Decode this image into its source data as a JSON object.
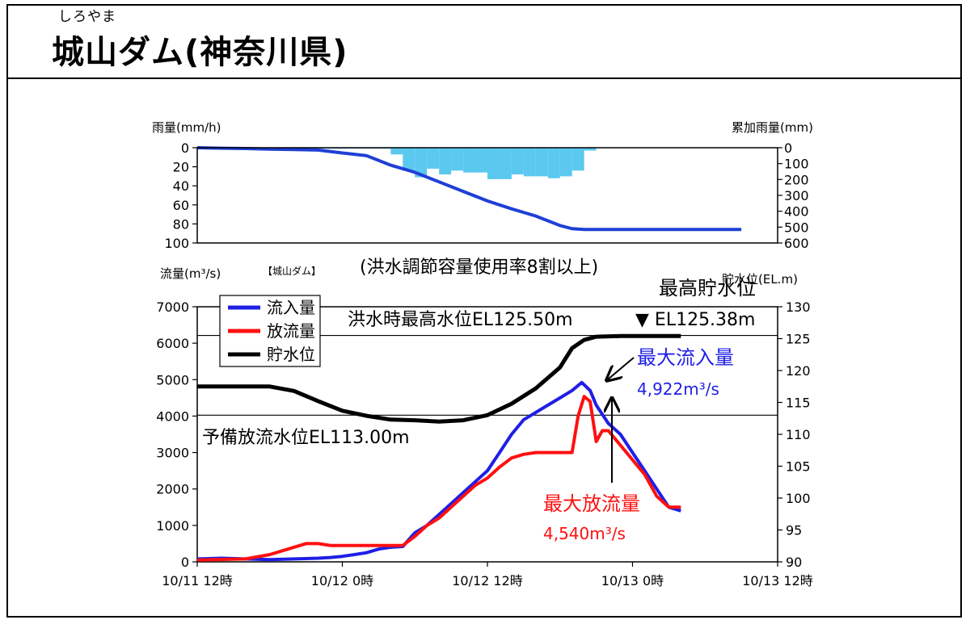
{
  "header": {
    "ruby": "しろやま",
    "title": "城山ダム(神奈川県)"
  },
  "colors": {
    "inflow": "#1f1fe6",
    "outflow": "#ff1010",
    "storage": "#000000",
    "rain_bar": "#5bc8f0",
    "cum_rain": "#1f3fd6"
  },
  "chart_data": [
    {
      "type": "bar",
      "panel": "rainfall",
      "ylabel_left": "雨量(mm/h)",
      "ylabel_right": "累加雨量(mm)",
      "left_ticks": [
        "0",
        "20",
        "40",
        "60",
        "80",
        "100"
      ],
      "right_ticks": [
        "0",
        "100",
        "200",
        "300",
        "400",
        "500",
        "600"
      ],
      "ylim_left": [
        100,
        0
      ],
      "ylim_right": [
        600,
        0
      ],
      "xlim_hours": [
        0,
        48
      ],
      "hourly_rain": [
        [
          0,
          0
        ],
        [
          1,
          0.5
        ],
        [
          2,
          0.5
        ],
        [
          3,
          0.5
        ],
        [
          4,
          0.5
        ],
        [
          5,
          0.5
        ],
        [
          6,
          0.5
        ],
        [
          7,
          1
        ],
        [
          8,
          1
        ],
        [
          9,
          1
        ],
        [
          10,
          1
        ],
        [
          11,
          1
        ],
        [
          12,
          1
        ],
        [
          13,
          1
        ],
        [
          14,
          1
        ],
        [
          15,
          1
        ],
        [
          16,
          7
        ],
        [
          17,
          24
        ],
        [
          18,
          31
        ],
        [
          19,
          22
        ],
        [
          20,
          28
        ],
        [
          21,
          24
        ],
        [
          22,
          26
        ],
        [
          23,
          26
        ],
        [
          24,
          33
        ],
        [
          25,
          33
        ],
        [
          26,
          28
        ],
        [
          27,
          30
        ],
        [
          28,
          30
        ],
        [
          29,
          32
        ],
        [
          30,
          30
        ],
        [
          31,
          24
        ],
        [
          32,
          3
        ],
        [
          33,
          0
        ]
      ],
      "cumulative_rain": [
        [
          0,
          0
        ],
        [
          2,
          3
        ],
        [
          4,
          5
        ],
        [
          6,
          9
        ],
        [
          8,
          11
        ],
        [
          10,
          15
        ],
        [
          12,
          33
        ],
        [
          14,
          50
        ],
        [
          16,
          110
        ],
        [
          18,
          155
        ],
        [
          20,
          215
        ],
        [
          22,
          275
        ],
        [
          24,
          335
        ],
        [
          26,
          385
        ],
        [
          28,
          430
        ],
        [
          30,
          490
        ],
        [
          31,
          510
        ],
        [
          32,
          515
        ],
        [
          34,
          515
        ],
        [
          40,
          515
        ],
        [
          45,
          515
        ]
      ]
    },
    {
      "type": "line",
      "panel": "flow",
      "subtitle": "(洪水調節容量使用率8割以上)",
      "small_label": "【城山ダム】",
      "ylabel_left": "流量(m³/s)",
      "ylabel_right": "貯水位(EL.m)",
      "left_ticks": [
        "0",
        "1000",
        "2000",
        "3000",
        "4000",
        "5000",
        "6000",
        "7000"
      ],
      "right_ticks": [
        "90",
        "95",
        "100",
        "105",
        "110",
        "115",
        "120",
        "125",
        "130"
      ],
      "x_ticks": [
        "10/11 12時",
        "10/12 0時",
        "10/12 12時",
        "10/13 0時",
        "10/13 12時"
      ],
      "ylim_left": [
        0,
        7000
      ],
      "ylim_right": [
        90,
        130
      ],
      "xlim_hours": [
        0,
        48
      ],
      "legend": [
        "流入量",
        "放流量",
        "貯水位"
      ],
      "series": [
        {
          "name": "流入量",
          "points": [
            [
              0,
              80
            ],
            [
              2,
              100
            ],
            [
              4,
              80
            ],
            [
              6,
              60
            ],
            [
              8,
              80
            ],
            [
              10,
              100
            ],
            [
              11,
              120
            ],
            [
              12,
              150
            ],
            [
              13,
              200
            ],
            [
              14,
              250
            ],
            [
              15,
              350
            ],
            [
              16,
              400
            ],
            [
              17,
              420
            ],
            [
              18,
              800
            ],
            [
              19,
              1000
            ],
            [
              20,
              1300
            ],
            [
              21,
              1600
            ],
            [
              22,
              1900
            ],
            [
              23,
              2200
            ],
            [
              24,
              2500
            ],
            [
              25,
              3000
            ],
            [
              26,
              3500
            ],
            [
              27,
              3900
            ],
            [
              28,
              4100
            ],
            [
              29,
              4300
            ],
            [
              30,
              4500
            ],
            [
              31,
              4700
            ],
            [
              31.8,
              4922
            ],
            [
              32.5,
              4700
            ],
            [
              33,
              4300
            ],
            [
              34,
              3800
            ],
            [
              35,
              3500
            ],
            [
              36,
              3000
            ],
            [
              37,
              2500
            ],
            [
              38,
              2000
            ],
            [
              39,
              1500
            ],
            [
              40,
              1400
            ]
          ]
        },
        {
          "name": "放流量",
          "points": [
            [
              0,
              50
            ],
            [
              4,
              80
            ],
            [
              6,
              200
            ],
            [
              8,
              400
            ],
            [
              9,
              500
            ],
            [
              10,
              500
            ],
            [
              11,
              450
            ],
            [
              12,
              450
            ],
            [
              13,
              450
            ],
            [
              14,
              450
            ],
            [
              15,
              450
            ],
            [
              16,
              450
            ],
            [
              17,
              450
            ],
            [
              18,
              700
            ],
            [
              19,
              1000
            ],
            [
              20,
              1200
            ],
            [
              21,
              1500
            ],
            [
              22,
              1800
            ],
            [
              23,
              2100
            ],
            [
              24,
              2300
            ],
            [
              25,
              2600
            ],
            [
              26,
              2850
            ],
            [
              27,
              2950
            ],
            [
              28,
              3000
            ],
            [
              29,
              3000
            ],
            [
              30,
              3000
            ],
            [
              31,
              3000
            ],
            [
              31.5,
              4000
            ],
            [
              32,
              4540
            ],
            [
              32.5,
              4400
            ],
            [
              33,
              3300
            ],
            [
              33.5,
              3600
            ],
            [
              34,
              3600
            ],
            [
              35,
              3200
            ],
            [
              36,
              2800
            ],
            [
              37,
              2400
            ],
            [
              38,
              1800
            ],
            [
              39,
              1500
            ],
            [
              40,
              1500
            ]
          ]
        },
        {
          "name": "貯水位",
          "points": [
            [
              0,
              117.5
            ],
            [
              4,
              117.5
            ],
            [
              6,
              117.5
            ],
            [
              8,
              116.8
            ],
            [
              10,
              115.2
            ],
            [
              12,
              113.7
            ],
            [
              14,
              112.9
            ],
            [
              16,
              112.3
            ],
            [
              18,
              112.2
            ],
            [
              20,
              112.0
            ],
            [
              22,
              112.2
            ],
            [
              24,
              113.0
            ],
            [
              26,
              114.8
            ],
            [
              28,
              117.2
            ],
            [
              30,
              120.5
            ],
            [
              31,
              123.5
            ],
            [
              32,
              124.8
            ],
            [
              33,
              125.3
            ],
            [
              35,
              125.4
            ],
            [
              38,
              125.4
            ],
            [
              40,
              125.4
            ]
          ]
        }
      ],
      "annotations": {
        "flood_level": {
          "level": 125.5,
          "text": "洪水時最高水位EL125.50m"
        },
        "reserve_level": {
          "level": 113.0,
          "text": "予備放流水位EL113.00m"
        },
        "max_level_title": "最高貯水位",
        "max_level_value": "▼ EL125.38m",
        "max_inflow_title": "最大流入量",
        "max_inflow_value": "4,922m³/s",
        "max_outflow_title": "最大放流量",
        "max_outflow_value": "4,540m³/s"
      }
    }
  ]
}
